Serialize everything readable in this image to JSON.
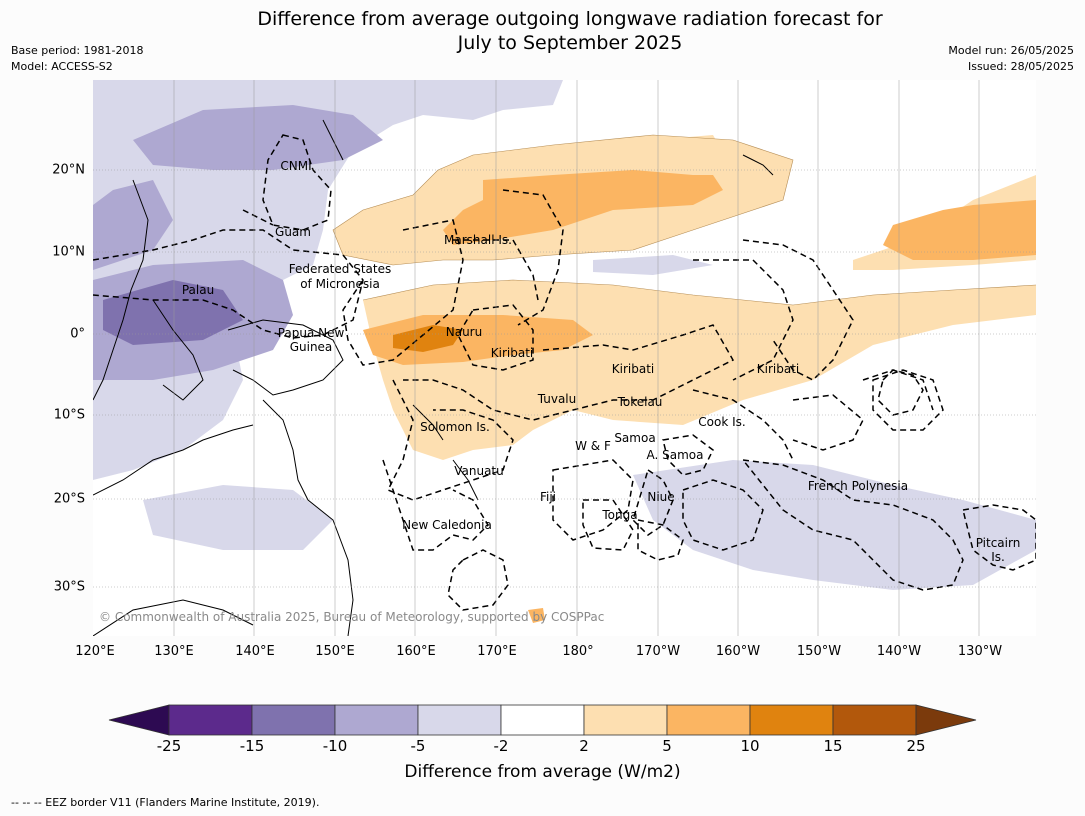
{
  "title": {
    "line1": "Difference from average outgoing longwave radiation forecast for",
    "line2": "July to September 2025"
  },
  "meta_left": {
    "base_period": "Base period: 1981-2018",
    "model": "Model: ACCESS-S2"
  },
  "meta_right": {
    "model_run": "Model run: 26/05/2025",
    "issued": "Issued: 28/05/2025"
  },
  "lon_ticks": [
    "120°E",
    "130°E",
    "140°E",
    "150°E",
    "160°E",
    "170°E",
    "180°",
    "170°W",
    "160°W",
    "150°W",
    "140°W",
    "130°W"
  ],
  "lat_ticks": [
    "20°N",
    "10°N",
    "0°",
    "10°S",
    "20°S",
    "30°S"
  ],
  "place_labels": {
    "cnmi": "CNMI",
    "guam": "Guam",
    "marshall": "Marshall Is.",
    "fsm1": "Federated States",
    "fsm2": "of Micronesia",
    "palau": "Palau",
    "png1": "Papua New",
    "png2": "Guinea",
    "nauru": "Nauru",
    "kiribati_w": "Kiribati",
    "kiribati_c": "Kiribati",
    "kiribati_e": "Kiribati",
    "tuvalu": "Tuvalu",
    "tokelau": "Tokelau",
    "cook": "Cook Is.",
    "solomon": "Solomon Is.",
    "samoa": "Samoa",
    "wf": "W & F",
    "asamoa": "A. Samoa",
    "vanuatu": "Vanuatu",
    "fiji": "Fiji",
    "niue": "Niue",
    "tonga": "Tonga",
    "french_polynesia": "French Polynesia",
    "pitcairn1": "Pitcairn",
    "pitcairn2": "Is.",
    "new_caledonia": "New Caledonia"
  },
  "copyright": "© Commonwealth of Australia 2025, Bureau of Meteorology, supported by COSPPac",
  "colorbar": {
    "ticks": [
      "-25",
      "-15",
      "-10",
      "-5",
      "-2",
      "2",
      "5",
      "10",
      "15",
      "25"
    ],
    "colors": [
      "#2d0a52",
      "#5c2a8c",
      "#7f72ae",
      "#aea8d1",
      "#d8d8ea",
      "#ffffff",
      "#fddfb1",
      "#fbb562",
      "#e0830f",
      "#b2580c",
      "#7b3a0c"
    ],
    "label": "Difference from average (W/m2)"
  },
  "footnote": "--  --  -- EEZ border V11 (Flanders Marine Institute, 2019)."
}
